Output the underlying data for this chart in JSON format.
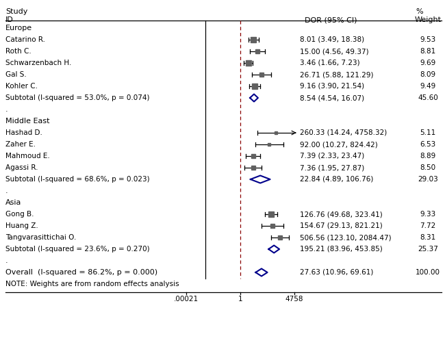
{
  "title_line1": "Study",
  "title_line2": "ID",
  "col_header_dor": "DOR (95% CI)",
  "col_header_pct": "%",
  "col_header_weight": "Weight",
  "note": "NOTE: Weights are from random effects analysis",
  "x_labels": [
    ".00021",
    "1",
    "4758"
  ],
  "groups": [
    {
      "name": "Europe",
      "studies": [
        {
          "label": "Catarino R.",
          "point": 8.01,
          "ci_low": 3.49,
          "ci_high": 18.38,
          "weight_str": "9.53",
          "dor_str": "8.01 (3.49, 18.38)",
          "weight": 9.53
        },
        {
          "label": "Roth C.",
          "point": 15.0,
          "ci_low": 4.56,
          "ci_high": 49.37,
          "weight_str": "8.81",
          "dor_str": "15.00 (4.56, 49.37)",
          "weight": 8.81
        },
        {
          "label": "Schwarzenbach H.",
          "point": 3.46,
          "ci_low": 1.66,
          "ci_high": 7.23,
          "weight_str": "9.69",
          "dor_str": "3.46 (1.66, 7.23)",
          "weight": 9.69
        },
        {
          "label": "Gal S.",
          "point": 26.71,
          "ci_low": 5.88,
          "ci_high": 121.29,
          "weight_str": "8.09",
          "dor_str": "26.71 (5.88, 121.29)",
          "weight": 8.09
        },
        {
          "label": "Kohler C.",
          "point": 9.16,
          "ci_low": 3.9,
          "ci_high": 21.54,
          "weight_str": "9.49",
          "dor_str": "9.16 (3.90, 21.54)",
          "weight": 9.49
        }
      ],
      "subtotal": {
        "label": "Subtotal (I-squared = 53.0%, p = 0.074)",
        "point": 8.54,
        "ci_low": 4.54,
        "ci_high": 16.07,
        "weight_str": "45.60",
        "dor_str": "8.54 (4.54, 16.07)"
      }
    },
    {
      "name": "Middle East",
      "studies": [
        {
          "label": "Hashad D.",
          "point": 260.33,
          "ci_low": 14.24,
          "ci_high": 4758.32,
          "weight_str": "5.11",
          "dor_str": "260.33 (14.24, 4758.32)",
          "weight": 5.11,
          "arrow": true
        },
        {
          "label": "Zaher E.",
          "point": 92.0,
          "ci_low": 10.27,
          "ci_high": 824.42,
          "weight_str": "6.53",
          "dor_str": "92.00 (10.27, 824.42)",
          "weight": 6.53
        },
        {
          "label": "Mahmoud E.",
          "point": 7.39,
          "ci_low": 2.33,
          "ci_high": 23.47,
          "weight_str": "8.89",
          "dor_str": "7.39 (2.33, 23.47)",
          "weight": 8.89
        },
        {
          "label": "Agassi R.",
          "point": 7.36,
          "ci_low": 1.95,
          "ci_high": 27.87,
          "weight_str": "8.50",
          "dor_str": "7.36 (1.95, 27.87)",
          "weight": 8.5
        }
      ],
      "subtotal": {
        "label": "Subtotal (I-squared = 68.6%, p = 0.023)",
        "point": 22.84,
        "ci_low": 4.89,
        "ci_high": 106.76,
        "weight_str": "29.03",
        "dor_str": "22.84 (4.89, 106.76)"
      }
    },
    {
      "name": "Asia",
      "studies": [
        {
          "label": "Gong B.",
          "point": 126.76,
          "ci_low": 49.68,
          "ci_high": 323.41,
          "weight_str": "9.33",
          "dor_str": "126.76 (49.68, 323.41)",
          "weight": 9.33
        },
        {
          "label": "Huang Z.",
          "point": 154.67,
          "ci_low": 29.13,
          "ci_high": 821.21,
          "weight_str": "7.72",
          "dor_str": "154.67 (29.13, 821.21)",
          "weight": 7.72
        },
        {
          "label": "Tangvarasittichai O.",
          "point": 506.56,
          "ci_low": 123.1,
          "ci_high": 2084.47,
          "weight_str": "8.31",
          "dor_str": "506.56 (123.10, 2084.47)",
          "weight": 8.31
        }
      ],
      "subtotal": {
        "label": "Subtotal (I-squared = 23.6%, p = 0.270)",
        "point": 195.21,
        "ci_low": 83.96,
        "ci_high": 453.85,
        "weight_str": "25.37",
        "dor_str": "195.21 (83.96, 453.85)"
      }
    }
  ],
  "overall": {
    "label": "Overall  (I-squared = 86.2%, p = 0.000)",
    "point": 27.63,
    "ci_low": 10.96,
    "ci_high": 69.61,
    "weight_str": "100.00",
    "dor_str": "27.63 (10.96, 69.61)"
  },
  "plot_bg": "#ffffff",
  "diamond_color": "#00008B",
  "line_color": "#000000",
  "dashed_color": "#8B0000",
  "text_color": "#000000",
  "marker_color": "#606060"
}
